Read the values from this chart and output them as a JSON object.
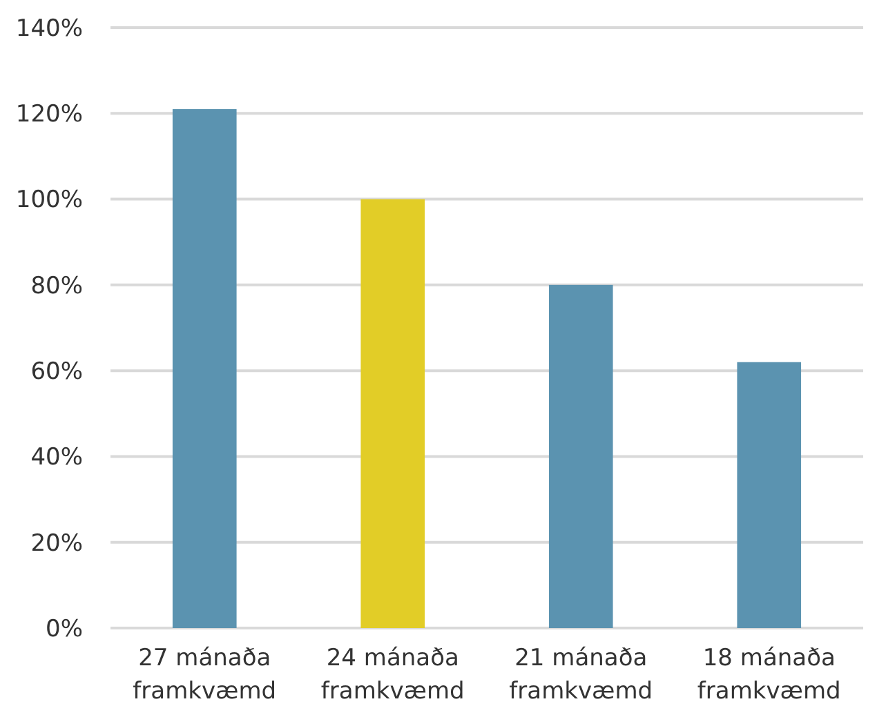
{
  "chart_data": {
    "type": "bar",
    "categories": [
      "27 mánaða framkvæmd",
      "24 mánaða framkvæmd",
      "21 mánaða framkvæmd",
      "18 mánaða framkvæmd"
    ],
    "values": [
      121,
      100,
      80,
      62
    ],
    "colors": [
      "#5b93b0",
      "#e2cd27",
      "#5b93b0",
      "#5b93b0"
    ],
    "ylim": [
      0,
      140
    ],
    "yticks": [
      {
        "value": 0,
        "label": "0%"
      },
      {
        "value": 20,
        "label": "20%"
      },
      {
        "value": 40,
        "label": "40%"
      },
      {
        "value": 60,
        "label": "60%"
      },
      {
        "value": 80,
        "label": "80%"
      },
      {
        "value": 100,
        "label": "100%"
      },
      {
        "value": 120,
        "label": "120%"
      },
      {
        "value": 140,
        "label": "140%"
      }
    ],
    "grid": "y"
  }
}
